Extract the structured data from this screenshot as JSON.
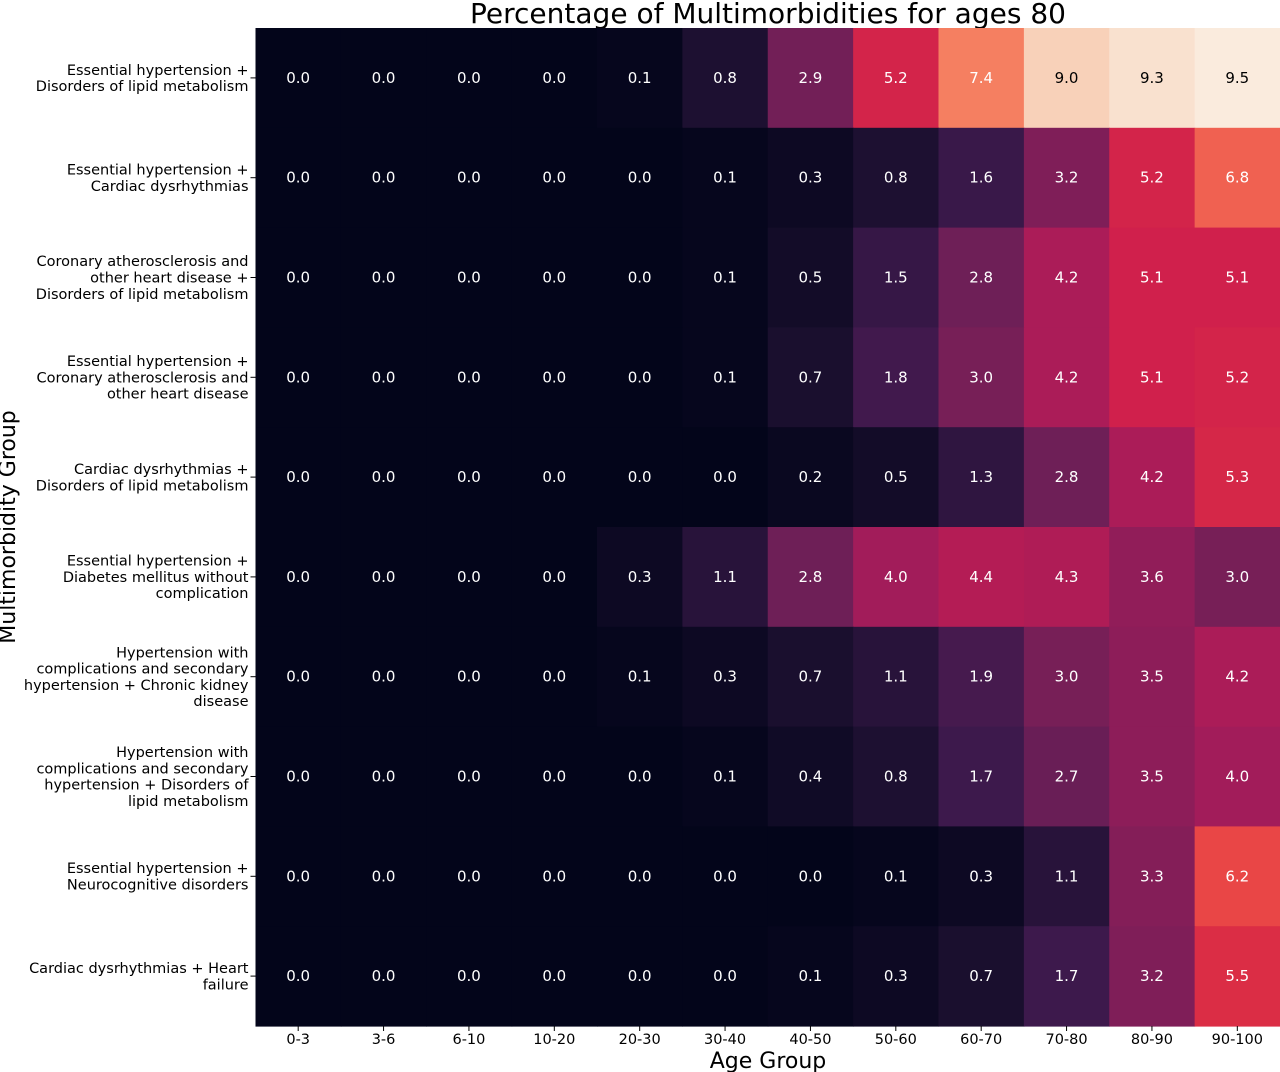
{
  "chart_data": {
    "type": "heatmap",
    "title": "Percentage of Multimorbidities for ages 80",
    "xlabel": "Age Group",
    "ylabel": "Multimorbidity  Group",
    "x_categories": [
      "0-3",
      "3-6",
      "6-10",
      "10-20",
      "20-30",
      "30-40",
      "40-50",
      "50-60",
      "60-70",
      "70-80",
      "80-90",
      "90-100"
    ],
    "y_categories": [
      [
        "Essential hypertension +",
        "Disorders of lipid metabolism"
      ],
      [
        "Essential hypertension +",
        "Cardiac dysrhythmias"
      ],
      [
        "Coronary atherosclerosis and",
        "other heart disease +",
        "Disorders of lipid metabolism"
      ],
      [
        "Essential hypertension +",
        "Coronary atherosclerosis and",
        "other heart disease"
      ],
      [
        "Cardiac dysrhythmias +",
        "Disorders of lipid metabolism"
      ],
      [
        "Essential hypertension +",
        "Diabetes mellitus without",
        "complication"
      ],
      [
        "Hypertension with",
        "complications and secondary",
        "hypertension + Chronic kidney",
        "disease"
      ],
      [
        "Hypertension with",
        "complications and secondary",
        "hypertension + Disorders of",
        "lipid metabolism"
      ],
      [
        "Essential hypertension +",
        "Neurocognitive disorders"
      ],
      [
        "Cardiac dysrhythmias + Heart",
        "failure"
      ]
    ],
    "values": [
      [
        0.0,
        0.0,
        0.0,
        0.0,
        0.1,
        0.8,
        2.9,
        5.2,
        7.4,
        9.0,
        9.3,
        9.5
      ],
      [
        0.0,
        0.0,
        0.0,
        0.0,
        0.0,
        0.1,
        0.3,
        0.8,
        1.6,
        3.2,
        5.2,
        6.8
      ],
      [
        0.0,
        0.0,
        0.0,
        0.0,
        0.0,
        0.1,
        0.5,
        1.5,
        2.8,
        4.2,
        5.1,
        5.1
      ],
      [
        0.0,
        0.0,
        0.0,
        0.0,
        0.0,
        0.1,
        0.7,
        1.8,
        3.0,
        4.2,
        5.1,
        5.2
      ],
      [
        0.0,
        0.0,
        0.0,
        0.0,
        0.0,
        0.0,
        0.2,
        0.5,
        1.3,
        2.8,
        4.2,
        5.3
      ],
      [
        0.0,
        0.0,
        0.0,
        0.0,
        0.3,
        1.1,
        2.8,
        4.0,
        4.4,
        4.3,
        3.6,
        3.0
      ],
      [
        0.0,
        0.0,
        0.0,
        0.0,
        0.1,
        0.3,
        0.7,
        1.1,
        1.9,
        3.0,
        3.5,
        4.2
      ],
      [
        0.0,
        0.0,
        0.0,
        0.0,
        0.0,
        0.1,
        0.4,
        0.8,
        1.7,
        2.7,
        3.5,
        4.0
      ],
      [
        0.0,
        0.0,
        0.0,
        0.0,
        0.0,
        0.0,
        0.0,
        0.1,
        0.3,
        1.1,
        3.3,
        6.2
      ],
      [
        0.0,
        0.0,
        0.0,
        0.0,
        0.0,
        0.0,
        0.1,
        0.3,
        0.7,
        1.7,
        3.2,
        5.5
      ]
    ],
    "value_range": [
      0,
      9.5
    ],
    "colormap": "rocket",
    "colorbar": false,
    "grid": false,
    "annotations": true,
    "annotation_format": "0.0"
  }
}
